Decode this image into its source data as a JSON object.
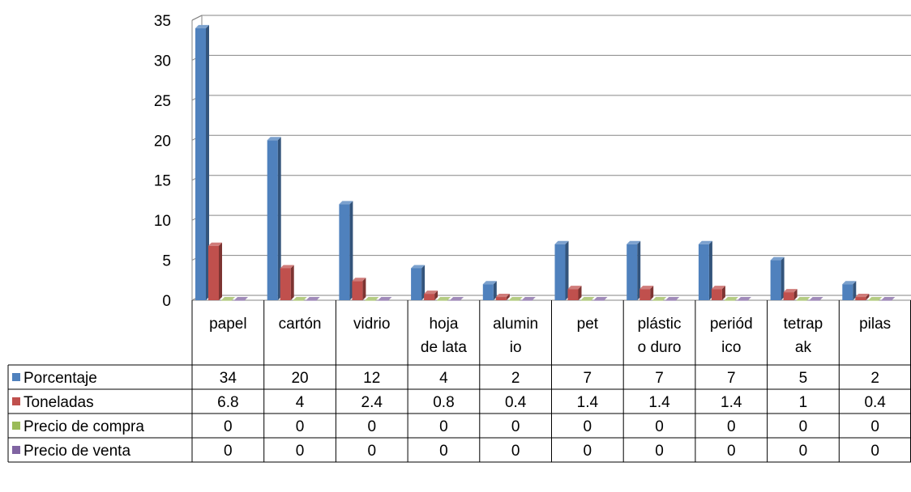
{
  "chart_data": {
    "type": "bar",
    "title": "",
    "xlabel": "",
    "ylabel": "",
    "ylim": [
      0,
      35
    ],
    "yticks": [
      "0",
      "5",
      "10",
      "15",
      "20",
      "25",
      "30",
      "35"
    ],
    "grid": true,
    "style": "3d-clustered-column-with-data-table",
    "categories": [
      [
        "papel"
      ],
      [
        "cartón"
      ],
      [
        "vidrio"
      ],
      [
        "hoja",
        "de lata"
      ],
      [
        "alumin",
        "io"
      ],
      [
        "pet"
      ],
      [
        "plástic",
        "o duro"
      ],
      [
        "periód",
        "ico"
      ],
      [
        "tetrap",
        "ak"
      ],
      [
        "pilas"
      ]
    ],
    "series": [
      {
        "name": "Porcentaje",
        "color": "#4F81BD",
        "values": [
          34,
          20,
          12,
          4,
          2,
          7,
          7,
          7,
          5,
          2
        ],
        "display": [
          "34",
          "20",
          "12",
          "4",
          "2",
          "7",
          "7",
          "7",
          "5",
          "2"
        ]
      },
      {
        "name": "Toneladas",
        "color": "#C0504D",
        "values": [
          6.8,
          4,
          2.4,
          0.8,
          0.4,
          1.4,
          1.4,
          1.4,
          1,
          0.4
        ],
        "display": [
          "6.8",
          "4",
          "2.4",
          "0.8",
          "0.4",
          "1.4",
          "1.4",
          "1.4",
          "1",
          "0.4"
        ]
      },
      {
        "name": "Precio de compra",
        "color": "#9BBB59",
        "values": [
          0,
          0,
          0,
          0,
          0,
          0,
          0,
          0,
          0,
          0
        ],
        "display": [
          "0",
          "0",
          "0",
          "0",
          "0",
          "0",
          "0",
          "0",
          "0",
          "0"
        ]
      },
      {
        "name": "Precio de venta",
        "color": "#8064A2",
        "values": [
          0,
          0,
          0,
          0,
          0,
          0,
          0,
          0,
          0,
          0
        ],
        "display": [
          "0",
          "0",
          "0",
          "0",
          "0",
          "0",
          "0",
          "0",
          "0",
          "0"
        ]
      }
    ]
  }
}
